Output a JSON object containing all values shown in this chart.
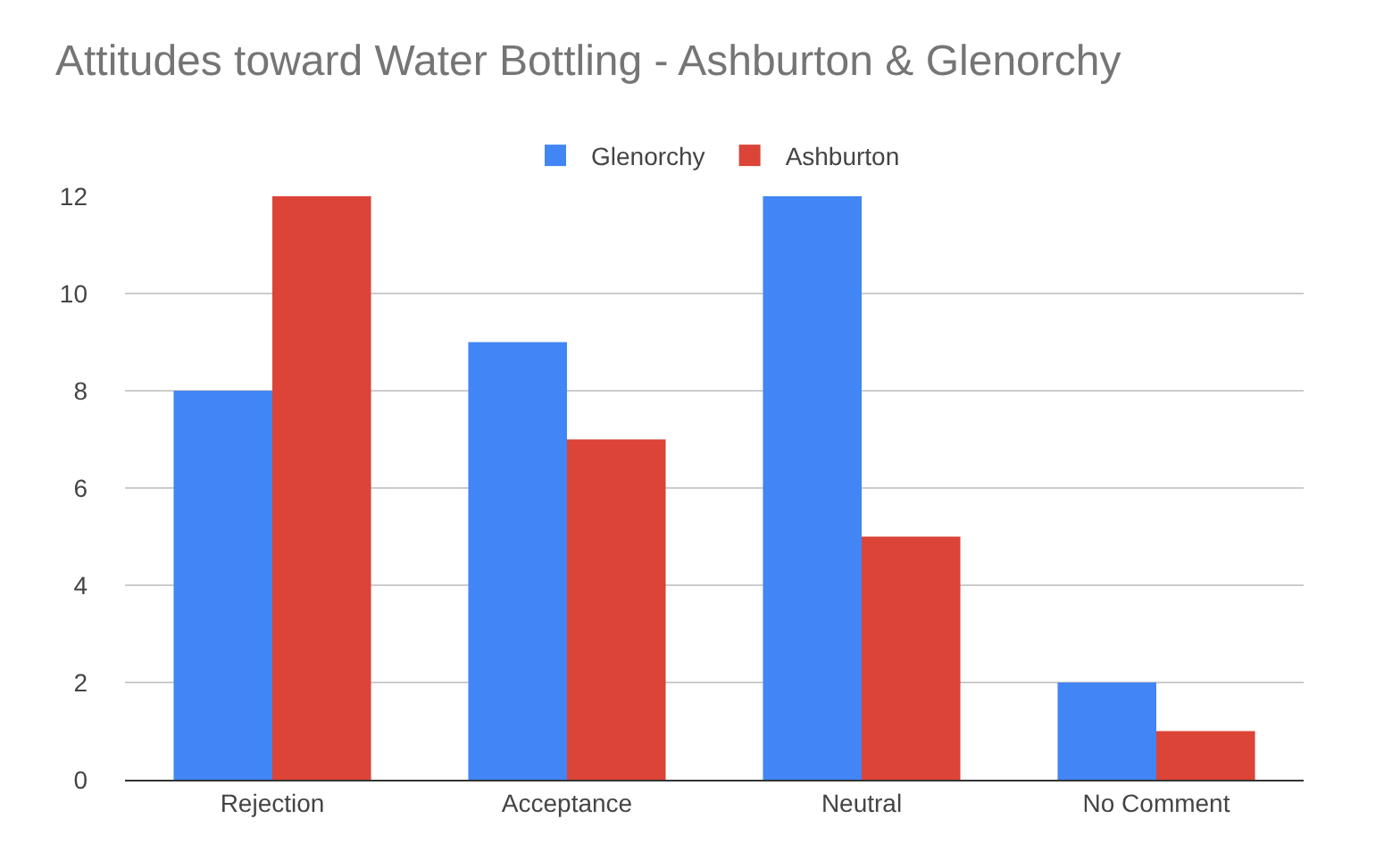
{
  "chart_data": {
    "type": "bar",
    "title": "Attitudes toward Water Bottling - Ashburton & Glenorchy",
    "categories": [
      "Rejection",
      "Acceptance",
      "Neutral",
      "No Comment"
    ],
    "series": [
      {
        "name": "Glenorchy",
        "color": "#4285f4",
        "values": [
          8,
          9,
          12,
          2
        ]
      },
      {
        "name": "Ashburton",
        "color": "#db4437",
        "values": [
          12,
          7,
          5,
          1
        ]
      }
    ],
    "ylim": [
      0,
      12
    ],
    "yticks": [
      0,
      2,
      4,
      6,
      8,
      10,
      12
    ],
    "grid": "y",
    "legend": "top"
  }
}
